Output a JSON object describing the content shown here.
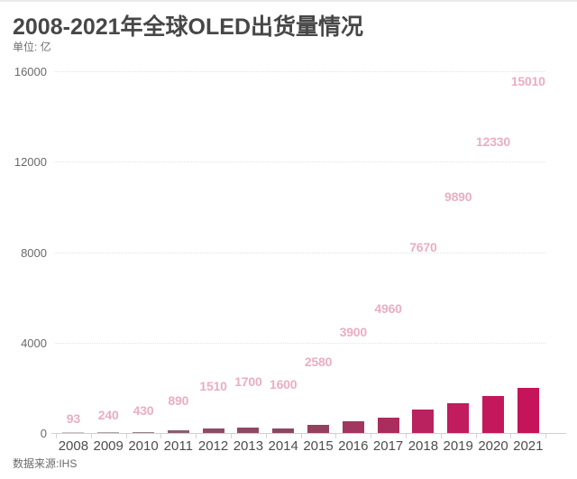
{
  "header": {
    "title": "2008-2021年全球OLED出货量情况",
    "unit": "单位: 亿"
  },
  "footer": {
    "source": "数据来源:IHS"
  },
  "chart_data": {
    "type": "bar",
    "title": "2008-2021年全球OLED出货量情况",
    "unit_label": "单位: 亿",
    "source": "数据来源:IHS",
    "categories": [
      "2008",
      "2009",
      "2010",
      "2011",
      "2012",
      "2013",
      "2014",
      "2015",
      "2016",
      "2017",
      "2018",
      "2019",
      "2020",
      "2021"
    ],
    "values": [
      93,
      240,
      430,
      890,
      1510,
      1700,
      1600,
      2580,
      3900,
      4960,
      7670,
      9890,
      12330,
      15010
    ],
    "y_ticks": [
      0,
      4000,
      8000,
      12000,
      16000
    ],
    "ylim": [
      0,
      16000
    ],
    "grid": "horizontal-dotted",
    "legend": "none",
    "bar_colors": [
      "#cdc0c5",
      "#b2a4aa",
      "#97828b",
      "#8a5c6e",
      "#8d4c66",
      "#8d4964",
      "#8b4761",
      "#95405f",
      "#a13660",
      "#ab2d5e",
      "#b9215f",
      "#c11c5d",
      "#c4185c",
      "#c6145a"
    ],
    "value_label_color": "#e9aec1",
    "axis_text_color": "#6a6a6a",
    "title_color": "#474747"
  }
}
